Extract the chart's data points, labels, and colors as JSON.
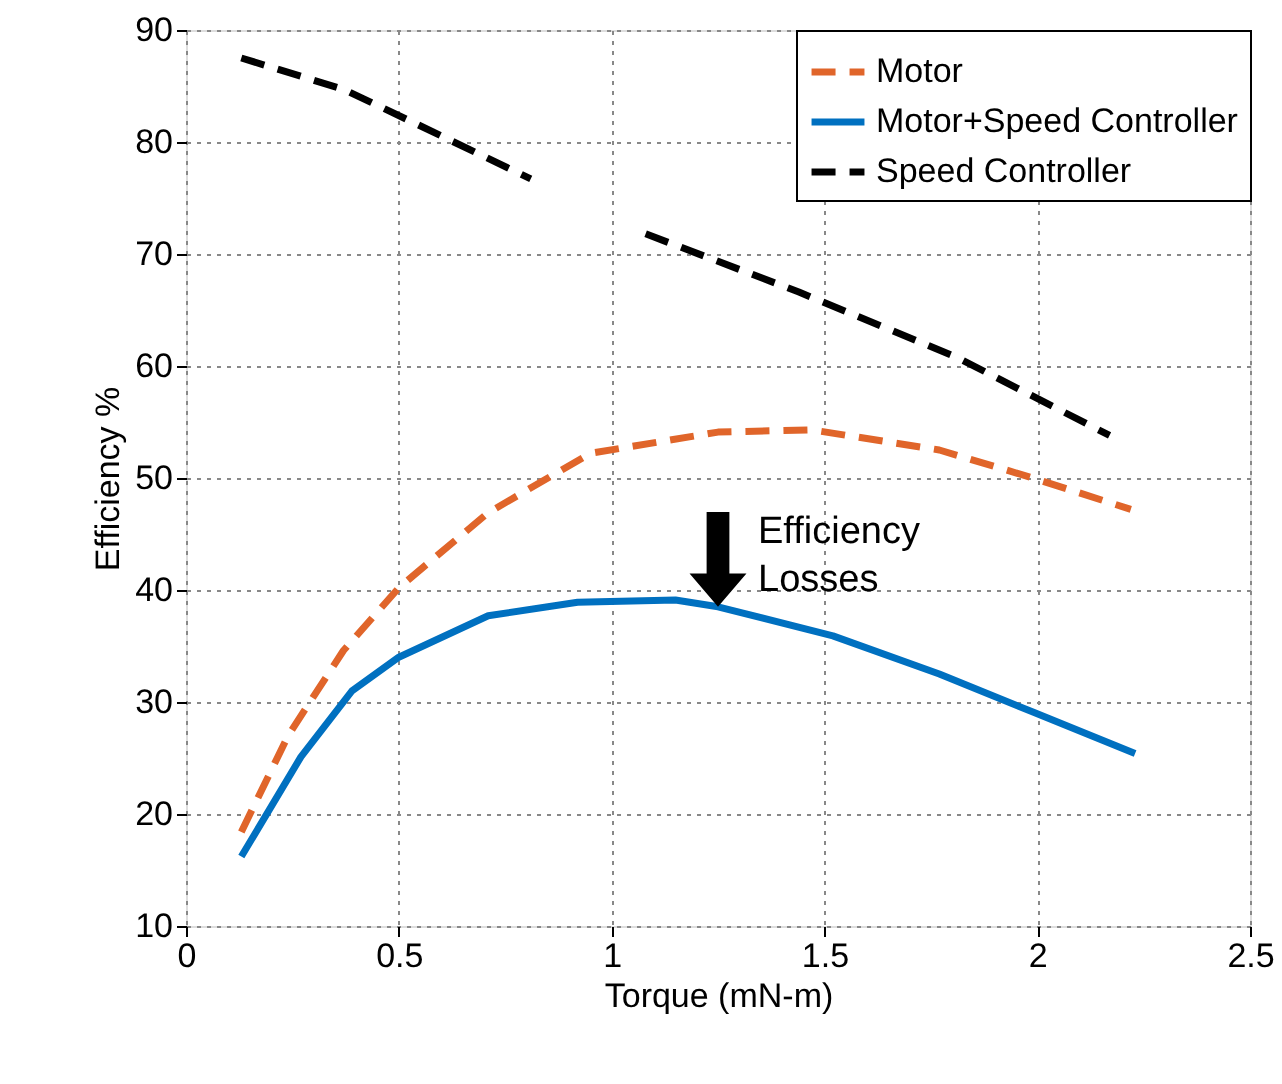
{
  "chart_data": {
    "type": "line",
    "xlabel": "Torque (mN-m)",
    "ylabel": "Efficiency %",
    "xlim": [
      0,
      2.5
    ],
    "xticks": [
      0,
      0.5,
      1,
      1.5,
      2,
      2.5
    ],
    "ylim": [
      10,
      90
    ],
    "yticks": [
      10,
      20,
      30,
      40,
      50,
      60,
      70,
      80,
      90
    ],
    "grid": true,
    "legend": "top right",
    "marker": "none",
    "series": [
      {
        "name": "Motor",
        "color": "#e0652a",
        "line_style": "dashed",
        "x": [
          0.13,
          0.24,
          0.37,
          0.5,
          0.71,
          0.95,
          1.25,
          1.47,
          1.77,
          1.99,
          2.22
        ],
        "values": [
          18.4,
          27.0,
          34.6,
          40.2,
          46.9,
          52.2,
          54.1,
          54.3,
          52.5,
          50.0,
          47.2
        ]
      },
      {
        "name": "Motor+Speed Controller",
        "color": "#0070c0",
        "line_style": "solid",
        "x": [
          0.13,
          0.27,
          0.39,
          0.5,
          0.71,
          0.92,
          1.15,
          1.25,
          1.52,
          1.77,
          1.99,
          2.23
        ],
        "values": [
          16.2,
          25.1,
          31.0,
          34.0,
          37.7,
          38.9,
          39.1,
          38.5,
          35.9,
          32.5,
          29.1,
          25.4
        ]
      },
      {
        "name": "Speed Controller",
        "color": "#000000",
        "line_style": "dashed",
        "x": [
          0.13,
          0.37,
          0.52,
          0.81,
          0.95,
          1.08,
          1.44,
          1.81,
          2.17
        ],
        "values": [
          87.5,
          84.7,
          82.0,
          76.7,
          null,
          71.8,
          66.6,
          60.8,
          53.8
        ]
      }
    ],
    "annotations": [
      {
        "text": "Efficiency\nLosses",
        "x": 1.25,
        "y": 38.5
      }
    ]
  }
}
